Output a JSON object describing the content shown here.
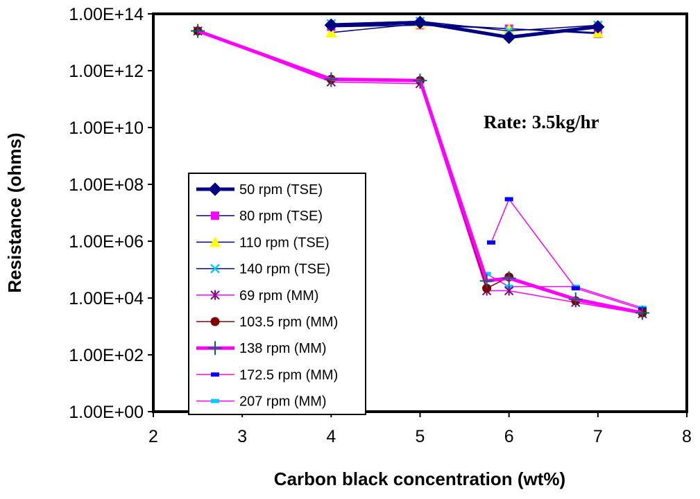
{
  "chart_data": {
    "type": "line",
    "xlabel": "Carbon black concentration (wt%)",
    "ylabel": "Resistance (ohms)",
    "annotation": "Rate: 3.5kg/hr",
    "xlim": [
      2,
      8
    ],
    "ylim": [
      1,
      100000000000000
    ],
    "yscale": "log",
    "x_ticks": [
      "2",
      "3",
      "4",
      "5",
      "6",
      "7",
      "8"
    ],
    "y_ticks": [
      "1.00E+00",
      "1.00E+02",
      "1.00E+04",
      "1.00E+06",
      "1.00E+08",
      "1.00E+10",
      "1.00E+12",
      "1.00E+14"
    ],
    "grid": false,
    "legend_position": "left-center",
    "series": [
      {
        "name": "50 rpm (TSE)",
        "color": "#000080",
        "marker": "diamond",
        "width": 5,
        "x": [
          4,
          5,
          6,
          7
        ],
        "y": [
          40000000000000,
          50000000000000,
          15000000000000,
          35000000000000
        ]
      },
      {
        "name": "80 rpm (TSE)",
        "color": "#ff00ff",
        "marker": "square",
        "width": 1.5,
        "line_color": "#000080",
        "x": [
          4,
          5,
          6,
          7
        ],
        "y": [
          35000000000000,
          40000000000000,
          30000000000000,
          20000000000000
        ]
      },
      {
        "name": "110 rpm (TSE)",
        "color": "#ffff00",
        "marker": "triangle",
        "width": 1.5,
        "line_color": "#000080",
        "x": [
          4,
          5,
          6,
          7
        ],
        "y": [
          22000000000000,
          45000000000000,
          30000000000000,
          22000000000000
        ]
      },
      {
        "name": "140 rpm (TSE)",
        "color": "#00ccff",
        "marker": "x",
        "width": 1.5,
        "line_color": "#000080",
        "x": [
          4,
          5,
          6,
          7
        ],
        "y": [
          45000000000000,
          55000000000000,
          25000000000000,
          40000000000000
        ]
      },
      {
        "name": "69 rpm (MM)",
        "color": "#800080",
        "marker": "star",
        "width": 1.5,
        "line_color": "#ff00ff",
        "x": [
          2.5,
          4,
          5,
          5.75,
          6,
          6.75,
          7.5
        ],
        "y": [
          25000000000000,
          400000000000,
          350000000000,
          18000,
          18000,
          7000,
          2800
        ]
      },
      {
        "name": "103.5 rpm (MM)",
        "color": "#800000",
        "marker": "circle",
        "width": 1.5,
        "line_color": "#800000",
        "x": [
          2.5,
          4,
          5,
          5.75,
          6,
          6.75,
          7.5
        ],
        "y": [
          25000000000000,
          500000000000,
          450000000000,
          22000,
          55000,
          8000,
          3000
        ]
      },
      {
        "name": "138 rpm (MM)",
        "color": "#006666",
        "marker": "plus",
        "width": 5,
        "line_color": "#ff00ff",
        "x": [
          2.5,
          4,
          5,
          5.75,
          6,
          6.75,
          7.5
        ],
        "y": [
          25000000000000,
          500000000000,
          450000000000,
          40000,
          50000,
          9000,
          3000
        ]
      },
      {
        "name": "172.5 rpm (MM)",
        "color": "#0000ff",
        "marker": "dash",
        "width": 1.5,
        "line_color": "#ff00ff",
        "x": [
          5.8,
          6,
          6.75,
          7.5
        ],
        "y": [
          900000,
          30000000,
          22000,
          4000
        ]
      },
      {
        "name": "207 rpm (MM)",
        "color": "#00ccff",
        "marker": "dash",
        "width": 1.5,
        "line_color": "#ff00ff",
        "x": [
          5.75,
          6,
          6.75,
          7.5
        ],
        "y": [
          70000,
          25000,
          25000,
          4500
        ]
      }
    ]
  }
}
